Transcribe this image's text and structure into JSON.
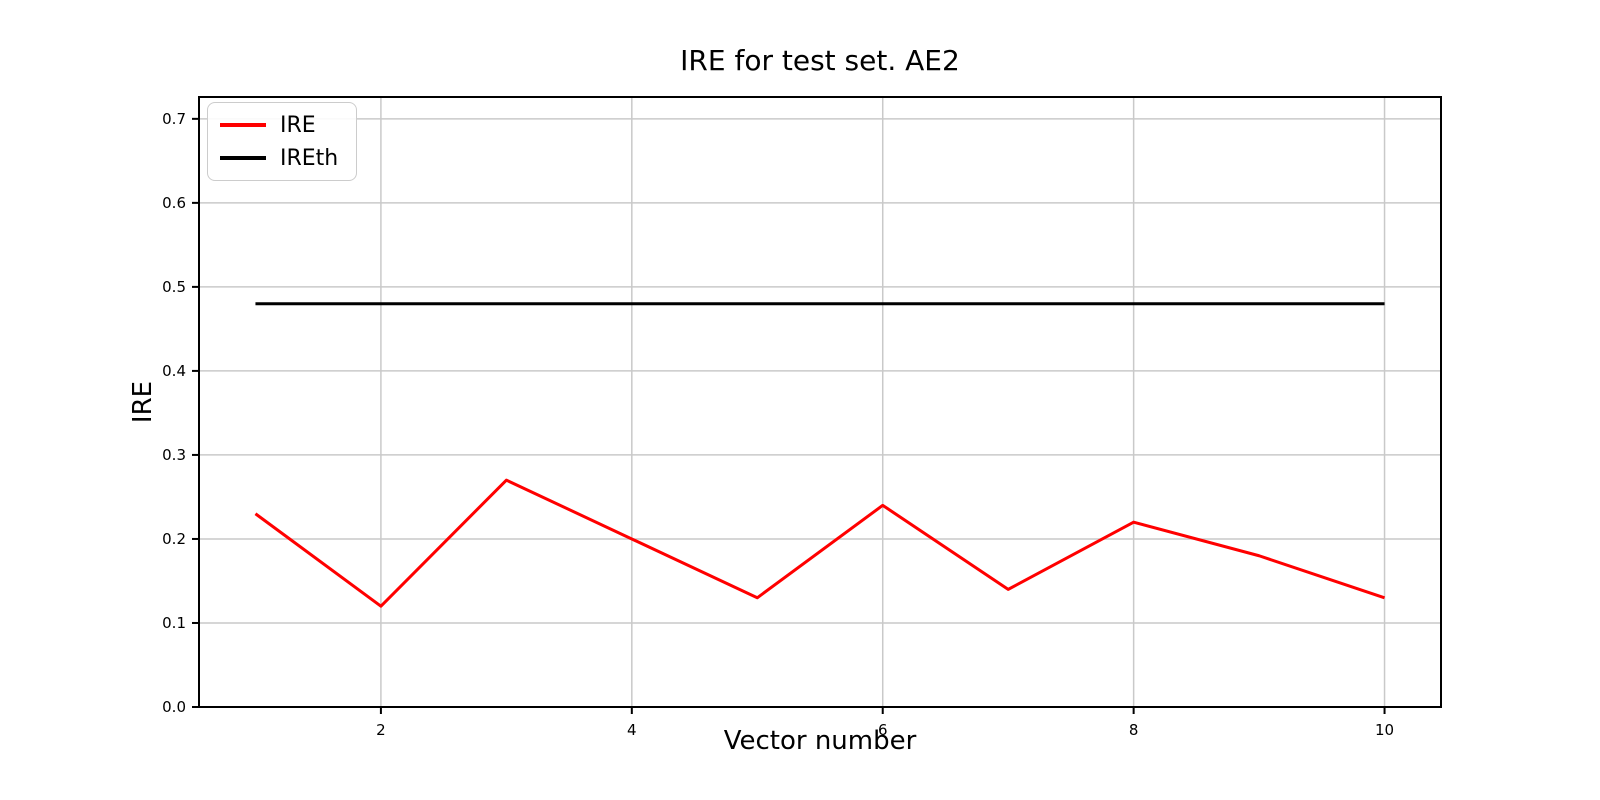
{
  "figure": {
    "background": "#ffffff"
  },
  "chart_data": {
    "type": "line",
    "title": "IRE for test set. AE2",
    "xlabel": "Vector number",
    "ylabel": "IRE",
    "x": [
      1,
      2,
      3,
      4,
      5,
      6,
      7,
      8,
      9,
      10
    ],
    "series": [
      {
        "name": "IRE",
        "color": "#ff0000",
        "values": [
          0.23,
          0.12,
          0.27,
          0.2,
          0.13,
          0.24,
          0.14,
          0.22,
          0.18,
          0.13
        ]
      },
      {
        "name": "IREth",
        "color": "#000000",
        "values": [
          0.48,
          0.48,
          0.48,
          0.48,
          0.48,
          0.48,
          0.48,
          0.48,
          0.48,
          0.48
        ]
      }
    ],
    "xticks": [
      2,
      4,
      6,
      8,
      10
    ],
    "yticks": [
      0.0,
      0.1,
      0.2,
      0.3,
      0.4,
      0.5,
      0.6,
      0.7
    ],
    "xlim": [
      0.55,
      10.45
    ],
    "ylim": [
      0.0,
      0.726
    ],
    "grid": true,
    "grid_color": "#c9c9c9",
    "axis_color": "#000000",
    "legend_position": "upper-left"
  }
}
